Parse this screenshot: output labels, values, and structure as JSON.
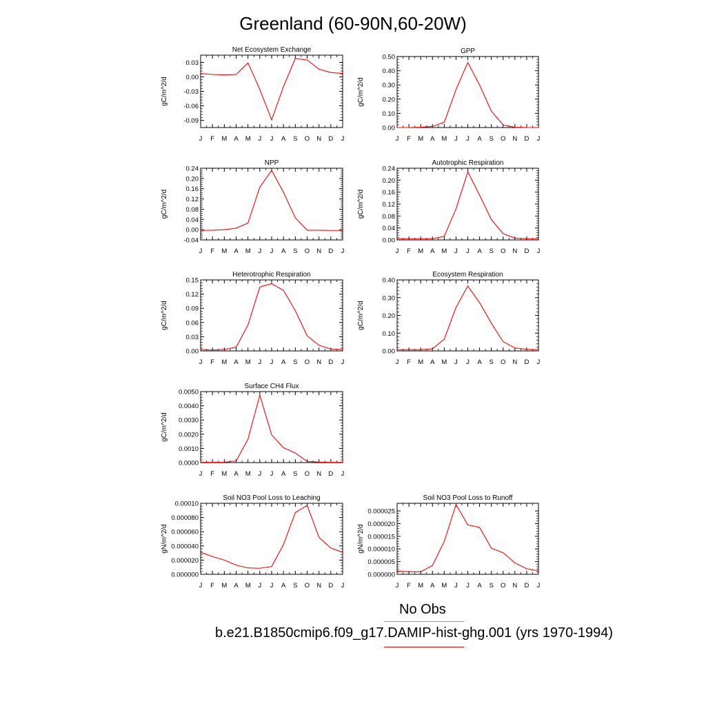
{
  "title": "Greenland (60-90N,60-20W)",
  "months": [
    "J",
    "F",
    "M",
    "A",
    "M",
    "J",
    "J",
    "A",
    "S",
    "O",
    "N",
    "D",
    "J"
  ],
  "chart_data": [
    {
      "type": "line",
      "title": "Net Ecosystem Exchange",
      "ylabel": "gC/m^2/d",
      "ylim": [
        -0.105,
        0.045
      ],
      "yticks": [
        0.03,
        0.0,
        -0.03,
        -0.06,
        -0.09
      ],
      "ytick_labels": [
        "0.03",
        "0.00",
        "-0.03",
        "-0.06",
        "-0.09"
      ],
      "series": [
        {
          "color": "#ff0000",
          "values": [
            0.007,
            0.005,
            0.004,
            0.005,
            0.029,
            -0.026,
            -0.089,
            -0.02,
            0.038,
            0.035,
            0.016,
            0.009,
            0.007
          ]
        }
      ]
    },
    {
      "type": "line",
      "title": "GPP",
      "ylabel": "gC/m^2/d",
      "ylim": [
        0,
        0.5
      ],
      "yticks": [
        0.5,
        0.4,
        0.3,
        0.2,
        0.1,
        0.0
      ],
      "ytick_labels": [
        "0.50",
        "0.40",
        "0.30",
        "0.20",
        "0.10",
        "0.00"
      ],
      "series": [
        {
          "color": "#ff0000",
          "values": [
            0.0,
            0.0,
            0.002,
            0.008,
            0.036,
            0.268,
            0.458,
            0.3,
            0.115,
            0.018,
            0.002,
            0.0,
            0.0
          ]
        }
      ]
    },
    {
      "type": "line",
      "title": "NPP",
      "ylabel": "gC/m^2/d",
      "ylim": [
        -0.04,
        0.24
      ],
      "yticks": [
        0.24,
        0.2,
        0.16,
        0.12,
        0.08,
        0.04,
        0.0,
        -0.04
      ],
      "ytick_labels": [
        "0.24",
        "0.20",
        "0.16",
        "0.12",
        "0.08",
        "0.04",
        "0.00",
        "-0.04"
      ],
      "series": [
        {
          "color": "#ff0000",
          "values": [
            -0.003,
            -0.002,
            0.0,
            0.006,
            0.026,
            0.166,
            0.232,
            0.146,
            0.047,
            -0.002,
            -0.002,
            -0.003,
            -0.003
          ]
        }
      ]
    },
    {
      "type": "line",
      "title": "Autotrophic Respiration",
      "ylabel": "gC/m^2/d",
      "ylim": [
        0,
        0.24
      ],
      "yticks": [
        0.24,
        0.2,
        0.16,
        0.12,
        0.08,
        0.04,
        0.0
      ],
      "ytick_labels": [
        "0.24",
        "0.20",
        "0.16",
        "0.12",
        "0.08",
        "0.04",
        "0.00"
      ],
      "series": [
        {
          "color": "#ff0000",
          "values": [
            0.004,
            0.004,
            0.004,
            0.004,
            0.012,
            0.104,
            0.228,
            0.15,
            0.068,
            0.021,
            0.006,
            0.004,
            0.004
          ]
        }
      ]
    },
    {
      "type": "line",
      "title": "Heterotrophic Respiration",
      "ylabel": "gC/m^2/d",
      "ylim": [
        0,
        0.15
      ],
      "yticks": [
        0.15,
        0.12,
        0.09,
        0.06,
        0.03,
        0.0
      ],
      "ytick_labels": [
        "0.15",
        "0.12",
        "0.09",
        "0.06",
        "0.03",
        "0.00"
      ],
      "series": [
        {
          "color": "#ff0000",
          "values": [
            0.003,
            0.002,
            0.003,
            0.008,
            0.055,
            0.135,
            0.142,
            0.128,
            0.085,
            0.032,
            0.012,
            0.004,
            0.003
          ]
        }
      ]
    },
    {
      "type": "line",
      "title": "Ecosystem Respiration",
      "ylabel": "gC/m^2/d",
      "ylim": [
        0,
        0.4
      ],
      "yticks": [
        0.4,
        0.3,
        0.2,
        0.1,
        0.0
      ],
      "ytick_labels": [
        "0.40",
        "0.30",
        "0.20",
        "0.10",
        "0.00"
      ],
      "series": [
        {
          "color": "#ff0000",
          "values": [
            0.007,
            0.007,
            0.007,
            0.012,
            0.066,
            0.245,
            0.366,
            0.272,
            0.156,
            0.052,
            0.017,
            0.009,
            0.007
          ]
        }
      ]
    },
    {
      "type": "line",
      "title": "Surface CH4 Flux",
      "ylabel": "gC/m^2/d",
      "ylim": [
        0,
        0.005
      ],
      "yticks": [
        0.005,
        0.004,
        0.003,
        0.002,
        0.001,
        0.0
      ],
      "ytick_labels": [
        "0.0050",
        "0.0040",
        "0.0030",
        "0.0020",
        "0.0010",
        "0.0000"
      ],
      "series": [
        {
          "color": "#ff0000",
          "values": [
            3e-05,
            2e-05,
            3e-05,
            0.00012,
            0.00165,
            0.00475,
            0.00195,
            0.00105,
            0.00068,
            8e-05,
            4e-05,
            2e-05,
            2e-05
          ]
        }
      ]
    },
    {
      "type": "line",
      "title": "Soil NO3 Pool Loss to Leaching",
      "ylabel": "gN/m^2/d",
      "ylim": [
        0,
        0.0001
      ],
      "yticks": [
        0.0001,
        8e-05,
        6e-05,
        4e-05,
        2e-05,
        0.0
      ],
      "ytick_labels": [
        "0.00010",
        "0.000080",
        "0.000060",
        "0.000040",
        "0.000020",
        "0.000000"
      ],
      "series": [
        {
          "color": "#ff0000",
          "values": [
            3.1e-05,
            2.5e-05,
            2e-05,
            1.3e-05,
            9e-06,
            8.5e-06,
            1.1e-05,
            4.2e-05,
            8.7e-05,
            9.7e-05,
            5.2e-05,
            3.7e-05,
            3.1e-05
          ]
        }
      ]
    },
    {
      "type": "line",
      "title": "Soil NO3 Pool Loss to Runoff",
      "ylabel": "gN/m^2/d",
      "ylim": [
        0,
        2.8e-05
      ],
      "yticks": [
        2.5e-05,
        2e-05,
        1.5e-05,
        1e-05,
        5e-06,
        0.0
      ],
      "ytick_labels": [
        "0.000025",
        "0.000020",
        "0.000015",
        "0.000010",
        "0.000005",
        "0.000000"
      ],
      "series": [
        {
          "color": "#ff0000",
          "values": [
            1.3e-06,
            1e-06,
            1e-06,
            3.5e-06,
            1.3e-05,
            2.75e-05,
            1.95e-05,
            1.85e-05,
            1.03e-05,
            8.5e-06,
            4.5e-06,
            2.2e-06,
            1.3e-06
          ]
        }
      ]
    }
  ],
  "legend": [
    {
      "label": "No Obs",
      "color": "#8a8aee"
    },
    {
      "label": "b.e21.B1850cmip6.f09_g17.DAMIP-hist-ghg.001 (yrs 1970-1994)",
      "color": "#ff0000"
    }
  ]
}
